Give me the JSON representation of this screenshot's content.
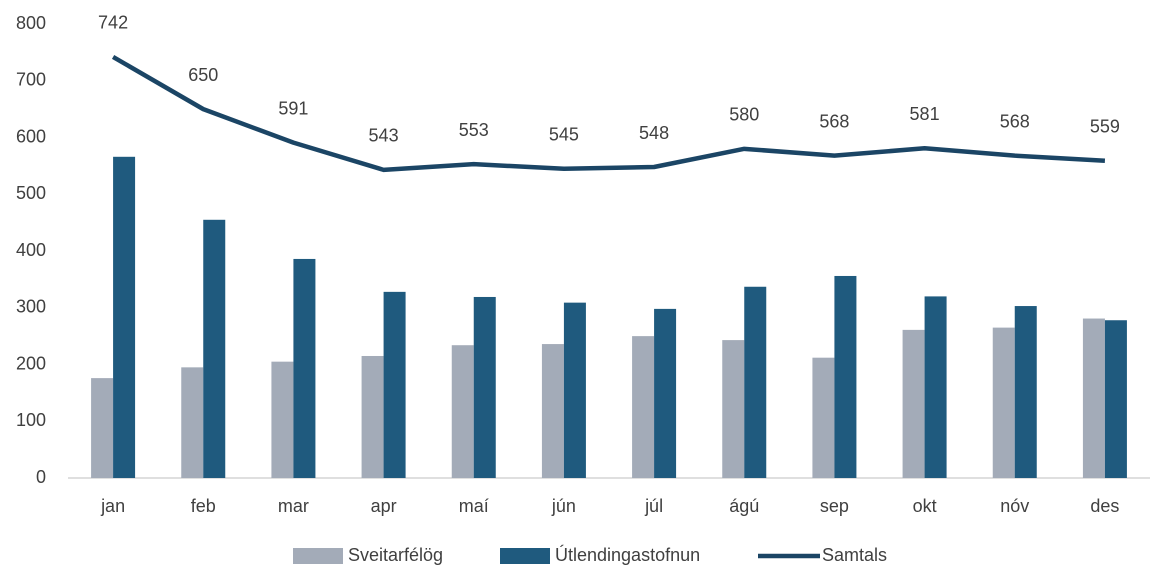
{
  "chart_data": {
    "type": "bar_line",
    "categories": [
      "jan",
      "feb",
      "mar",
      "apr",
      "maí",
      "jún",
      "júl",
      "ágú",
      "sep",
      "okt",
      "nóv",
      "des"
    ],
    "series": [
      {
        "name": "Sveitarfélög",
        "color": "#a3abb8",
        "type": "bar",
        "values": [
          176,
          195,
          205,
          215,
          234,
          236,
          250,
          243,
          212,
          261,
          265,
          281
        ]
      },
      {
        "name": "Útlendingastofnun",
        "color": "#1f5a7e",
        "type": "bar",
        "values": [
          566,
          455,
          386,
          328,
          319,
          309,
          298,
          337,
          356,
          320,
          303,
          278
        ]
      },
      {
        "name": "Samtals",
        "color": "#1b4565",
        "type": "line",
        "values": [
          742,
          650,
          591,
          543,
          553,
          545,
          548,
          580,
          568,
          581,
          568,
          559
        ]
      }
    ],
    "ylim": [
      0,
      800
    ],
    "yticks": [
      0,
      100,
      200,
      300,
      400,
      500,
      600,
      700,
      800
    ],
    "grid": false,
    "legend": "bottom"
  }
}
